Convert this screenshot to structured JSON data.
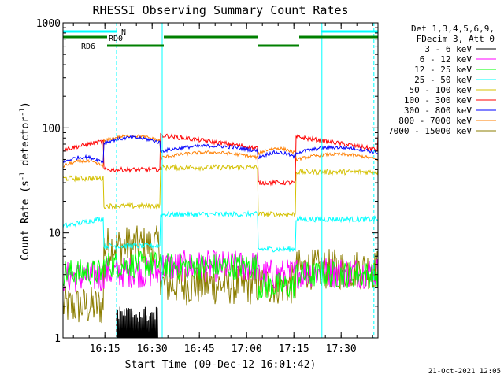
{
  "chart_data": {
    "type": "line",
    "title": "RHESSI Observing Summary Count Rates",
    "xlabel": "Start Time (09-Dec-12 16:01:42)",
    "ylabel": "Count Rate (s⁻¹ detector⁻¹)",
    "ylabel_main": "Count Rate (s",
    "ylabel_sup1": "-1",
    "ylabel_mid": " detector",
    "ylabel_sup2": "-1",
    "ylabel_end": ")",
    "yscale": "log",
    "ylim": [
      1,
      1000
    ],
    "xlim_minutes": [
      0,
      100
    ],
    "x_ticks": [
      {
        "label": "16:15",
        "min": 13.3
      },
      {
        "label": "16:30",
        "min": 28.3
      },
      {
        "label": "16:45",
        "min": 43.3
      },
      {
        "label": "17:00",
        "min": 58.3
      },
      {
        "label": "17:15",
        "min": 73.3
      },
      {
        "label": "17:30",
        "min": 88.3
      }
    ],
    "y_ticks": [
      {
        "label": "1",
        "value": 1
      },
      {
        "label": "10",
        "value": 10
      },
      {
        "label": "100",
        "value": 100
      },
      {
        "label": "1000",
        "value": 1000
      }
    ],
    "legend_header": [
      "Det 1,3,4,5,6,9,",
      "FDecim 3, Att 0"
    ],
    "series": [
      {
        "name": "3 - 6 keV",
        "color": "#000000"
      },
      {
        "name": "6 - 12 keV",
        "color": "#ff00ff"
      },
      {
        "name": "12 - 25 keV",
        "color": "#00ff00"
      },
      {
        "name": "25 - 50 keV",
        "color": "#00ffff"
      },
      {
        "name": "50 - 100 keV",
        "color": "#d4c000"
      },
      {
        "name": "100 - 300 keV",
        "color": "#ff0000"
      },
      {
        "name": "300 - 800 keV",
        "color": "#0000ff"
      },
      {
        "name": "800 - 7000 keV",
        "color": "#ff7f00"
      },
      {
        "name": "7000 - 15000 keV",
        "color": "#8b7d00"
      }
    ],
    "levels": {
      "segments": [
        {
          "from": 0,
          "to": 13,
          "red": 62,
          "blue": 47,
          "orange": 43,
          "yellow": 33,
          "cyan": 11.5,
          "green": 4.2,
          "magenta": 3.8,
          "olive": 2.0
        },
        {
          "from": 13,
          "to": 31,
          "red": 40,
          "blue": 72,
          "orange": 75,
          "yellow": 18,
          "cyan": 7.5,
          "green": 5,
          "magenta": 4.2,
          "olive": 7.5
        },
        {
          "from": 31,
          "to": 62,
          "red": 85,
          "blue": 60,
          "orange": 52,
          "yellow": 42,
          "cyan": 15,
          "green": 4.8,
          "magenta": 4.8,
          "olive": 3.2
        },
        {
          "from": 62,
          "to": 74,
          "red": 30,
          "blue": 52,
          "orange": 57,
          "yellow": 15,
          "cyan": 7,
          "green": 3.1,
          "magenta": 4.0,
          "olive": 3.2
        },
        {
          "from": 74,
          "to": 100,
          "red": 82,
          "blue": 58,
          "orange": 50,
          "yellow": 38,
          "cyan": 13.5,
          "green": 4.0,
          "magenta": 4.2,
          "olive": 4.5
        }
      ]
    },
    "status_bars": [
      {
        "label": "N",
        "color": "#00ffff",
        "spans": [
          [
            0,
            17
          ],
          [
            82,
            100
          ]
        ]
      },
      {
        "label": "RD0",
        "color": "#008000",
        "spans": [
          [
            0,
            14
          ],
          [
            32,
            62
          ],
          [
            75,
            100
          ]
        ]
      },
      {
        "label": "RD6",
        "color": "#008000",
        "spans": [
          [
            14,
            32
          ],
          [
            62,
            75
          ]
        ]
      }
    ],
    "vlines": [
      {
        "min": 17,
        "style": "dashed"
      },
      {
        "min": 31.5,
        "style": "solid"
      },
      {
        "min": 82.2,
        "style": "solid"
      },
      {
        "min": 98.7,
        "style": "dashed"
      }
    ],
    "footer": "21-Oct-2021 12:05"
  }
}
